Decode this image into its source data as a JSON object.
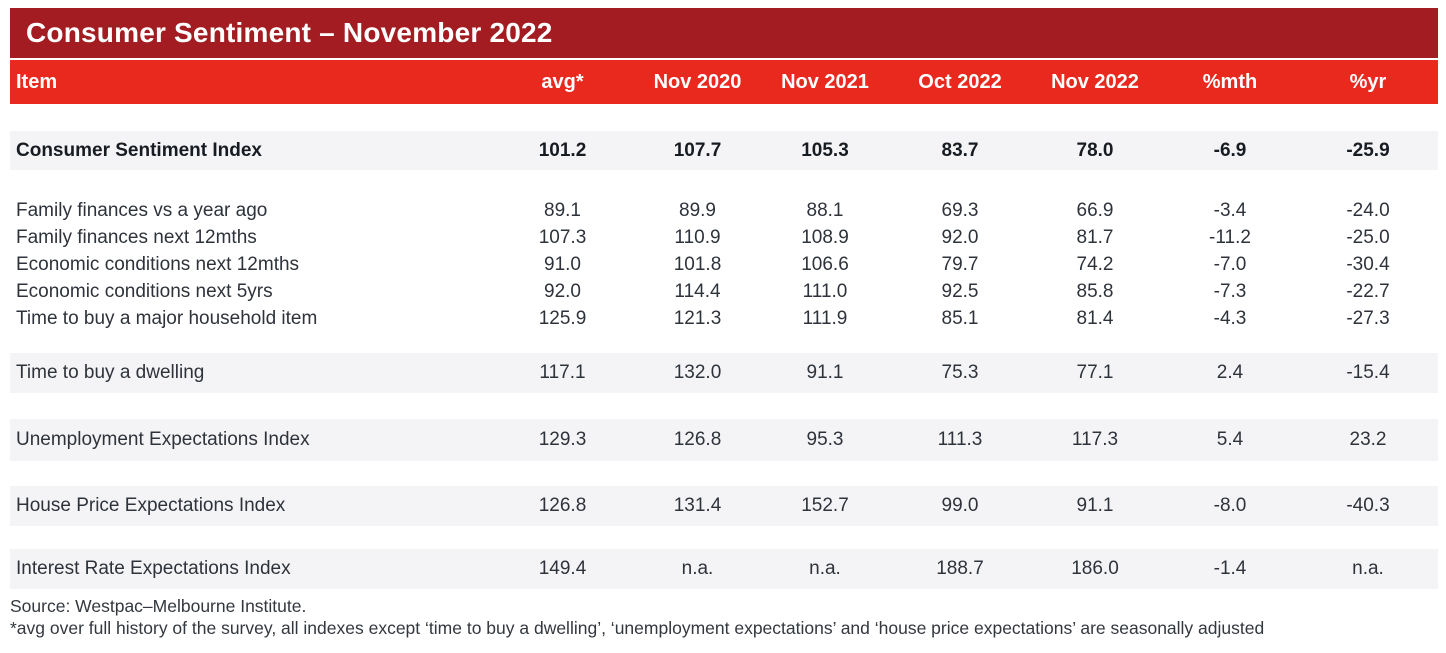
{
  "header": {
    "title": "Consumer Sentiment – November 2022"
  },
  "table": {
    "columns": [
      "Item",
      "avg*",
      "Nov 2020",
      "Nov 2021",
      "Oct 2022",
      "Nov 2022",
      "%mth",
      "%yr"
    ],
    "groups": [
      {
        "shaded": true,
        "bold": true,
        "rows": [
          {
            "label": "Consumer Sentiment Index",
            "values": [
              "101.2",
              "107.7",
              "105.3",
              "83.7",
              "78.0",
              "-6.9",
              "-25.9"
            ]
          }
        ]
      },
      {
        "shaded": false,
        "bold": false,
        "rows": [
          {
            "label": "Family finances vs a year ago",
            "values": [
              "89.1",
              "89.9",
              "88.1",
              "69.3",
              "66.9",
              "-3.4",
              "-24.0"
            ]
          },
          {
            "label": "Family finances next 12mths",
            "values": [
              "107.3",
              "110.9",
              "108.9",
              "92.0",
              "81.7",
              "-11.2",
              "-25.0"
            ]
          },
          {
            "label": "Economic conditions next 12mths",
            "values": [
              "91.0",
              "101.8",
              "106.6",
              "79.7",
              "74.2",
              "-7.0",
              "-30.4"
            ]
          },
          {
            "label": "Economic conditions next 5yrs",
            "values": [
              "92.0",
              "114.4",
              "111.0",
              "92.5",
              "85.8",
              "-7.3",
              "-22.7"
            ]
          },
          {
            "label": "Time to buy a major household item",
            "values": [
              "125.9",
              "121.3",
              "111.9",
              "85.1",
              "81.4",
              "-4.3",
              "-27.3"
            ]
          }
        ]
      },
      {
        "shaded": true,
        "bold": false,
        "rows": [
          {
            "label": "Time to buy a dwelling",
            "values": [
              "117.1",
              "132.0",
              "91.1",
              "75.3",
              "77.1",
              "2.4",
              "-15.4"
            ]
          }
        ]
      },
      {
        "shaded": true,
        "bold": false,
        "rows": [
          {
            "label": "Unemployment Expectations Index",
            "values": [
              "129.3",
              "126.8",
              "95.3",
              "111.3",
              "117.3",
              "5.4",
              "23.2"
            ]
          }
        ]
      },
      {
        "shaded": true,
        "bold": false,
        "rows": [
          {
            "label": "House Price Expectations Index",
            "values": [
              "126.8",
              "131.4",
              "152.7",
              "99.0",
              "91.1",
              "-8.0",
              "-40.3"
            ]
          }
        ]
      },
      {
        "shaded": true,
        "bold": false,
        "rows": [
          {
            "label": "Interest Rate Expectations Index",
            "values": [
              "149.4",
              "n.a.",
              "n.a.",
              "188.7",
              "186.0",
              "-1.4",
              "n.a."
            ]
          }
        ]
      }
    ]
  },
  "footer": {
    "source": "Source: Westpac–Melbourne Institute.",
    "note": "*avg over full history of the survey, all indexes except ‘time to buy a dwelling’, ‘unemployment expectations’ and ‘house price expectations’ are seasonally adjusted"
  },
  "colors": {
    "title_bar": "#A21C21",
    "header_bar": "#E9281E",
    "row_shade": "#F4F4F6",
    "title_text": "#FFFFFF",
    "body_text": "#2E333B",
    "strong_text": "#171B22"
  },
  "chart_data": {
    "type": "table",
    "title": "Consumer Sentiment – November 2022",
    "columns": [
      "Item",
      "avg*",
      "Nov 2020",
      "Nov 2021",
      "Oct 2022",
      "Nov 2022",
      "%mth",
      "%yr"
    ],
    "rows": [
      [
        "Consumer Sentiment Index",
        "101.2",
        "107.7",
        "105.3",
        "83.7",
        "78.0",
        "-6.9",
        "-25.9"
      ],
      [
        "Family finances vs a year ago",
        "89.1",
        "89.9",
        "88.1",
        "69.3",
        "66.9",
        "-3.4",
        "-24.0"
      ],
      [
        "Family finances next 12mths",
        "107.3",
        "110.9",
        "108.9",
        "92.0",
        "81.7",
        "-11.2",
        "-25.0"
      ],
      [
        "Economic conditions next 12mths",
        "91.0",
        "101.8",
        "106.6",
        "79.7",
        "74.2",
        "-7.0",
        "-30.4"
      ],
      [
        "Economic conditions next 5yrs",
        "92.0",
        "114.4",
        "111.0",
        "92.5",
        "85.8",
        "-7.3",
        "-22.7"
      ],
      [
        "Time to buy a major household item",
        "125.9",
        "121.3",
        "111.9",
        "85.1",
        "81.4",
        "-4.3",
        "-27.3"
      ],
      [
        "Time to buy a dwelling",
        "117.1",
        "132.0",
        "91.1",
        "75.3",
        "77.1",
        "2.4",
        "-15.4"
      ],
      [
        "Unemployment Expectations Index",
        "129.3",
        "126.8",
        "95.3",
        "111.3",
        "117.3",
        "5.4",
        "23.2"
      ],
      [
        "House Price Expectations Index",
        "126.8",
        "131.4",
        "152.7",
        "99.0",
        "91.1",
        "-8.0",
        "-40.3"
      ],
      [
        "Interest Rate Expectations Index",
        "149.4",
        "n.a.",
        "n.a.",
        "188.7",
        "186.0",
        "-1.4",
        "n.a."
      ]
    ],
    "source": "Source: Westpac–Melbourne Institute.",
    "note": "*avg over full history of the survey, all indexes except ‘time to buy a dwelling’, ‘unemployment expectations’ and ‘house price expectations’ are seasonally adjusted"
  }
}
